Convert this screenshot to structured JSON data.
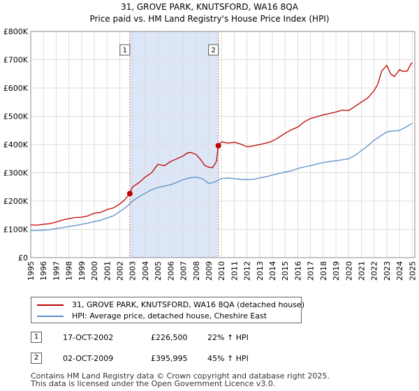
{
  "colors": {
    "property": "#c00000",
    "hpi": "#5b8ec6",
    "shade": "#dce6f7",
    "vline": "#d66"
  },
  "chart_data": {
    "type": "line",
    "title": "31, GROVE PARK, KNUTSFORD, WA16 8QA",
    "subtitle": "Price paid vs. HM Land Registry's House Price Index (HPI)",
    "xlabel": "",
    "ylabel": "",
    "xlim": [
      1995,
      2025.2
    ],
    "ylim": [
      0,
      800000
    ],
    "x_ticks": [
      1995,
      1996,
      1997,
      1998,
      1999,
      2000,
      2001,
      2002,
      2003,
      2004,
      2005,
      2006,
      2007,
      2008,
      2009,
      2010,
      2011,
      2012,
      2013,
      2014,
      2015,
      2016,
      2017,
      2018,
      2019,
      2020,
      2021,
      2022,
      2023,
      2024,
      2025
    ],
    "y_ticks": [
      {
        "value": 0,
        "label": "£0"
      },
      {
        "value": 100000,
        "label": "£100K"
      },
      {
        "value": 200000,
        "label": "£200K"
      },
      {
        "value": 300000,
        "label": "£300K"
      },
      {
        "value": 400000,
        "label": "£400K"
      },
      {
        "value": 500000,
        "label": "£500K"
      },
      {
        "value": 600000,
        "label": "£600K"
      },
      {
        "value": 700000,
        "label": "£700K"
      },
      {
        "value": 800000,
        "label": "£800K"
      }
    ],
    "grid": true,
    "shaded_range": [
      2002.79,
      2009.75
    ],
    "series": [
      {
        "name": "property",
        "x": [
          1995,
          1995.5,
          1996,
          1996.5,
          1997,
          1997.5,
          1998,
          1998.5,
          1999,
          1999.5,
          2000,
          2000.5,
          2001,
          2001.5,
          2002,
          2002.4,
          2002.79,
          2003,
          2003.5,
          2004,
          2004.5,
          2005,
          2005.5,
          2006,
          2006.5,
          2007,
          2007.3,
          2007.6,
          2008,
          2008.3,
          2008.7,
          2009,
          2009.3,
          2009.6,
          2009.75,
          2010,
          2010.5,
          2011,
          2011.5,
          2012,
          2012.5,
          2013,
          2013.5,
          2014,
          2014.5,
          2015,
          2015.5,
          2016,
          2016.5,
          2017,
          2017.5,
          2018,
          2018.5,
          2019,
          2019.5,
          2020,
          2020.5,
          2021,
          2021.5,
          2022,
          2022.3,
          2022.6,
          2023,
          2023.3,
          2023.6,
          2024,
          2024.3,
          2024.6,
          2024.9,
          2025
        ],
        "values": [
          116000,
          115000,
          118000,
          120000,
          126000,
          133000,
          138000,
          142000,
          143000,
          148000,
          157000,
          160000,
          170000,
          176000,
          190000,
          205000,
          226500,
          250000,
          265000,
          285000,
          300000,
          330000,
          325000,
          340000,
          350000,
          360000,
          370000,
          372000,
          365000,
          350000,
          325000,
          320000,
          318000,
          340000,
          395995,
          410000,
          405000,
          408000,
          402000,
          392000,
          395000,
          400000,
          405000,
          412000,
          425000,
          440000,
          452000,
          462000,
          480000,
          492000,
          498000,
          505000,
          510000,
          515000,
          522000,
          520000,
          535000,
          550000,
          565000,
          590000,
          615000,
          660000,
          680000,
          650000,
          640000,
          665000,
          658000,
          660000,
          685000,
          690000
        ]
      },
      {
        "name": "hpi",
        "x": [
          1995,
          1995.5,
          1996,
          1996.5,
          1997,
          1997.5,
          1998,
          1998.5,
          1999,
          1999.5,
          2000,
          2000.5,
          2001,
          2001.5,
          2002,
          2002.5,
          2003,
          2003.5,
          2004,
          2004.5,
          2005,
          2005.5,
          2006,
          2006.5,
          2007,
          2007.5,
          2008,
          2008.5,
          2009,
          2009.5,
          2010,
          2010.5,
          2011,
          2011.5,
          2012,
          2012.5,
          2013,
          2013.5,
          2014,
          2014.5,
          2015,
          2015.5,
          2016,
          2016.5,
          2017,
          2017.5,
          2018,
          2018.5,
          2019,
          2019.5,
          2020,
          2020.5,
          2021,
          2021.5,
          2022,
          2022.5,
          2023,
          2023.5,
          2024,
          2024.5,
          2025
        ],
        "values": [
          95000,
          96000,
          97000,
          99000,
          103000,
          106000,
          110000,
          113000,
          118000,
          122000,
          128000,
          132000,
          140000,
          148000,
          163000,
          178000,
          200000,
          215000,
          228000,
          240000,
          248000,
          253000,
          258000,
          266000,
          276000,
          282000,
          285000,
          279000,
          262000,
          268000,
          280000,
          282000,
          279000,
          277000,
          276000,
          277000,
          282000,
          286000,
          292000,
          297000,
          303000,
          307000,
          315000,
          321000,
          325000,
          331000,
          336000,
          340000,
          343000,
          346000,
          350000,
          362000,
          378000,
          395000,
          415000,
          430000,
          445000,
          448000,
          450000,
          462000,
          475000
        ]
      }
    ],
    "markers": [
      {
        "label": "1",
        "x": 2002.79,
        "value": 226500
      },
      {
        "label": "2",
        "x": 2009.75,
        "value": 395995
      }
    ]
  },
  "legend": {
    "property_label": "31, GROVE PARK, KNUTSFORD, WA16 8QA (detached house)",
    "hpi_label": "HPI: Average price, detached house, Cheshire East"
  },
  "sales": [
    {
      "num": "1",
      "date": "17-OCT-2002",
      "price": "£226,500",
      "hpi": "22% ↑ HPI"
    },
    {
      "num": "2",
      "date": "02-OCT-2009",
      "price": "£395,995",
      "hpi": "45% ↑ HPI"
    }
  ],
  "footer": {
    "line1": "Contains HM Land Registry data © Crown copyright and database right 2025.",
    "line2": "This data is licensed under the Open Government Licence v3.0."
  }
}
